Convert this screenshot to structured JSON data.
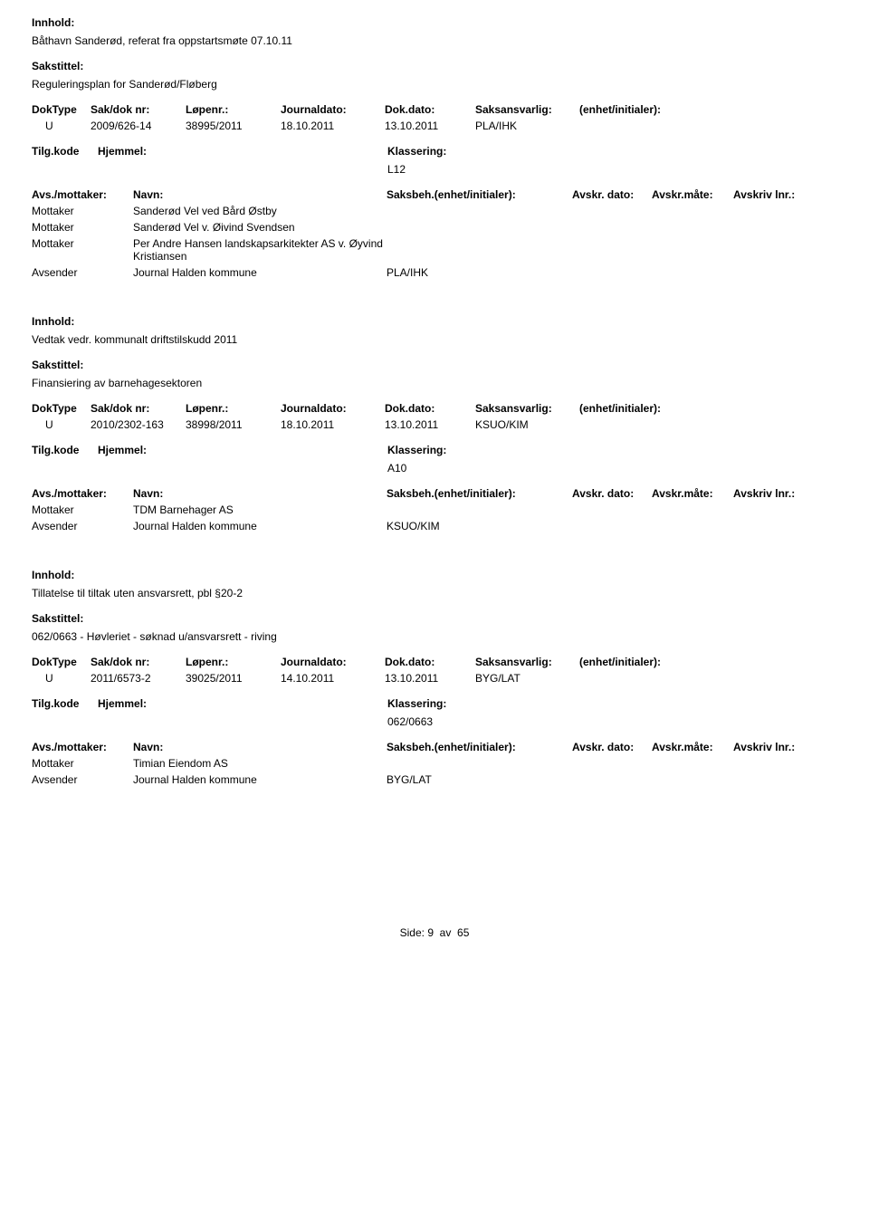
{
  "labels": {
    "innhold": "Innhold:",
    "sakstittel": "Sakstittel:",
    "doktype": "DokType",
    "sakdoknr": "Sak/dok nr:",
    "lopenr": "Løpenr.:",
    "journaldato": "Journaldato:",
    "dokdato": "Dok.dato:",
    "saksansvarlig": "Saksansvarlig:",
    "enhet": "(enhet/initialer):",
    "tilgkode": "Tilg.kode",
    "hjemmel": "Hjemmel:",
    "klassering": "Klassering:",
    "avsmottaker": "Avs./mottaker:",
    "navn": "Navn:",
    "saksbeh": "Saksbeh.",
    "saksbeh_enhet": "(enhet/initialer):",
    "avskr_dato": "Avskr. dato:",
    "avskr_mate": "Avskr.måte:",
    "avskriv_lnr": "Avskriv lnr.:",
    "mottaker": "Mottaker",
    "avsender": "Avsender"
  },
  "records": [
    {
      "innhold": "Båthavn Sanderød, referat  fra oppstartsmøte 07.10.11",
      "sakstittel": "Reguleringsplan for Sanderød/Fløberg",
      "doktype": "U",
      "sakdoknr": "2009/626-14",
      "lopenr": "38995/2011",
      "journaldato": "18.10.2011",
      "dokdato": "13.10.2011",
      "saksansvarlig": "PLA/IHK",
      "klassering": "L12",
      "parties": [
        {
          "role": "Mottaker",
          "name": "Sanderød Vel ved Bård Østby",
          "code": ""
        },
        {
          "role": "Mottaker",
          "name": "Sanderød Vel v. Øivind Svendsen",
          "code": ""
        },
        {
          "role": "Mottaker",
          "name": "Per Andre Hansen landskapsarkitekter AS v. Øyvind Kristiansen",
          "code": ""
        },
        {
          "role": "Avsender",
          "name": "Journal Halden kommune",
          "code": "PLA/IHK"
        }
      ]
    },
    {
      "innhold": "Vedtak vedr. kommunalt driftstilskudd 2011",
      "sakstittel": "Finansiering av barnehagesektoren",
      "doktype": "U",
      "sakdoknr": "2010/2302-163",
      "lopenr": "38998/2011",
      "journaldato": "18.10.2011",
      "dokdato": "13.10.2011",
      "saksansvarlig": "KSUO/KIM",
      "klassering": "A10",
      "parties": [
        {
          "role": "Mottaker",
          "name": "TDM Barnehager AS",
          "code": ""
        },
        {
          "role": "Avsender",
          "name": "Journal Halden kommune",
          "code": "KSUO/KIM"
        }
      ]
    },
    {
      "innhold": "Tillatelse til tiltak uten ansvarsrett, pbl §20-2",
      "sakstittel": "062/0663 - Høvleriet - søknad u/ansvarsrett - riving",
      "doktype": "U",
      "sakdoknr": "2011/6573-2",
      "lopenr": "39025/2011",
      "journaldato": "14.10.2011",
      "dokdato": "13.10.2011",
      "saksansvarlig": "BYG/LAT",
      "klassering": "062/0663",
      "parties": [
        {
          "role": "Mottaker",
          "name": "Timian Eiendom AS",
          "code": ""
        },
        {
          "role": "Avsender",
          "name": "Journal Halden kommune",
          "code": "BYG/LAT"
        }
      ]
    }
  ],
  "footer": {
    "side_label": "Side:",
    "page": "9",
    "av": "av",
    "total": "65"
  }
}
